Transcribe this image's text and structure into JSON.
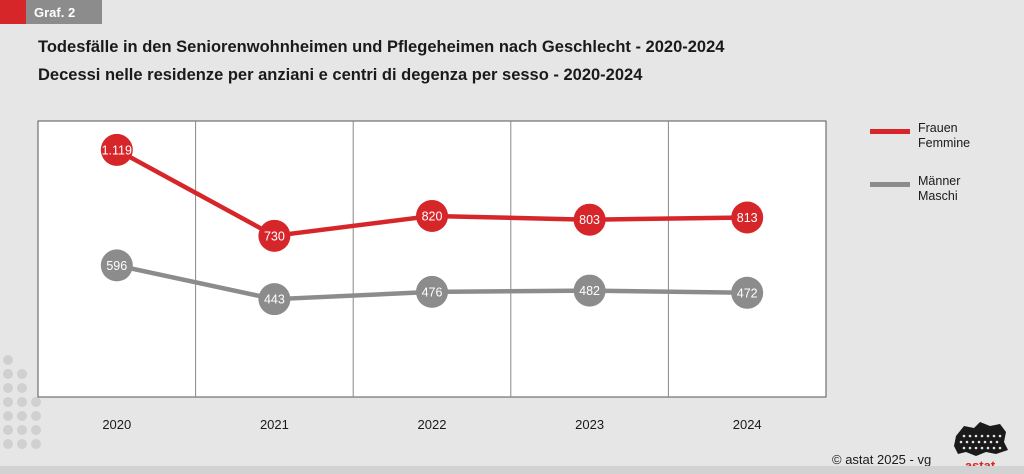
{
  "badge": {
    "label": "Graf. 2"
  },
  "titles": {
    "de": "Todesfälle in den Seniorenwohnheimen und Pflegeheimen nach Geschlecht - 2020-2024",
    "it": "Decessi nelle residenze per anziani e centri di degenza per sesso - 2020-2024"
  },
  "chart_data": {
    "type": "line",
    "x": [
      "2020",
      "2021",
      "2022",
      "2023",
      "2024"
    ],
    "ylim": [
      0,
      1250
    ],
    "grid": {
      "vertical": true,
      "horizontal": false
    },
    "legend_position": "right",
    "series": [
      {
        "name": "Frauen\nFemmine",
        "legend_lines": [
          "Frauen",
          "Femmine"
        ],
        "color": "#d7262a",
        "values": [
          1119,
          730,
          820,
          803,
          813
        ],
        "labels": [
          "1.119",
          "730",
          "820",
          "803",
          "813"
        ]
      },
      {
        "name": "Männer\nMaschi",
        "legend_lines": [
          "Männer",
          "Maschi"
        ],
        "color": "#8c8c8c",
        "values": [
          596,
          443,
          476,
          482,
          472
        ],
        "labels": [
          "596",
          "443",
          "476",
          "482",
          "472"
        ]
      }
    ]
  },
  "footer": {
    "copyright": "© astat 2025 - vg",
    "logo_text": "astat"
  },
  "colors": {
    "accent": "#d7262a",
    "gray": "#8c8c8c",
    "background": "#e6e6e6"
  }
}
